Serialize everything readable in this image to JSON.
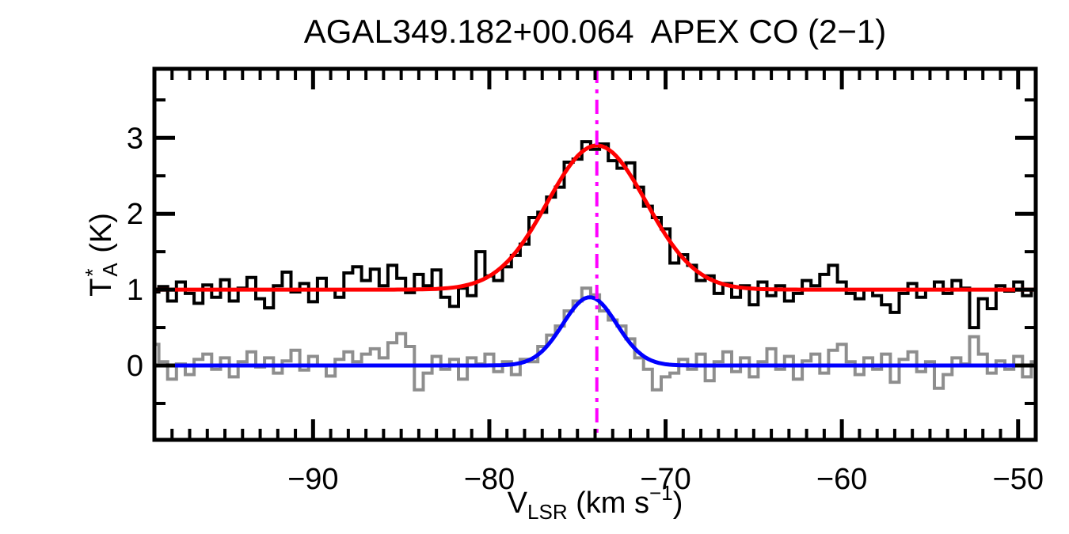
{
  "page": {
    "background": "#FFFFFF"
  },
  "chart_data": {
    "type": "line",
    "subtype": "spectral-histogram-with-gaussian-fits",
    "title": "AGAL349.182+00.064  APEX CO (2−1)",
    "xlabel": {
      "main": "V",
      "sub": "LSR",
      "mid": " (km s",
      "sup": "−1",
      "end": ")"
    },
    "xlabel_plain": "V_LSR (km s^-1)",
    "ylabel": {
      "main": "T",
      "sup": "*",
      "sub": "A",
      "end": " (K)"
    },
    "ylabel_plain": "T_A^* (K)",
    "xlim": [
      -99,
      -49
    ],
    "ylim": [
      -0.98,
      3.91
    ],
    "xticks": [
      -90,
      -80,
      -70,
      -60,
      -50
    ],
    "xtick_labels": [
      "−90",
      "−80",
      "−70",
      "−60",
      "−50"
    ],
    "xminor_step": 1,
    "yticks": [
      0,
      1,
      2,
      3
    ],
    "ytick_labels": [
      "0",
      "1",
      "2",
      "3"
    ],
    "yminor_step": 0.5,
    "grid": false,
    "legend": null,
    "channel_width": 0.5,
    "colors": {
      "spectrum_black": "#000000",
      "spectrum_gray": "#8E8E8E",
      "fit_red": "#FF0000",
      "fit_blue": "#0000FF",
      "marker_magenta": "#FF00FF",
      "axis": "#000000"
    },
    "series": [
      {
        "name": "spectrum-gray",
        "style": "histogram",
        "color_key": "spectrum_gray",
        "baseline": 0.0,
        "x_start": -99.0,
        "dx": 0.5,
        "values": [
          0.28,
          0.05,
          -0.18,
          0.02,
          -0.12,
          0.08,
          0.15,
          -0.05,
          0.1,
          -0.15,
          0.05,
          0.18,
          -0.02,
          0.1,
          -0.1,
          0.06,
          0.2,
          -0.06,
          0.12,
          0.0,
          -0.14,
          0.08,
          0.18,
          0.05,
          0.15,
          0.22,
          0.1,
          0.3,
          0.42,
          0.25,
          -0.32,
          -0.1,
          0.12,
          -0.05,
          0.08,
          -0.18,
          0.1,
          0.02,
          0.15,
          -0.08,
          0.05,
          -0.12,
          0.08,
          0.05,
          0.25,
          0.4,
          0.52,
          0.72,
          0.85,
          1.02,
          0.93,
          0.72,
          0.6,
          0.52,
          0.35,
          0.1,
          -0.05,
          -0.32,
          -0.15,
          -0.1,
          0.08,
          -0.05,
          0.15,
          -0.2,
          0.05,
          0.18,
          -0.08,
          0.1,
          -0.15,
          0.05,
          0.22,
          -0.05,
          0.12,
          -0.18,
          0.06,
          0.15,
          -0.1,
          0.2,
          0.28,
          0.05,
          -0.12,
          0.1,
          -0.05,
          0.15,
          -0.22,
          0.08,
          0.18,
          -0.08,
          0.05,
          -0.3,
          -0.12,
          0.1,
          0.02,
          0.38,
          0.15,
          -0.1,
          0.06,
          -0.05,
          0.12,
          -0.15,
          0.05
        ]
      },
      {
        "name": "spectrum-black-offset",
        "style": "histogram",
        "color_key": "spectrum_black",
        "baseline": 1.0,
        "x_start": -99.0,
        "dx": 0.5,
        "values": [
          0.97,
          1.04,
          0.85,
          1.1,
          0.95,
          0.82,
          1.06,
          0.9,
          1.13,
          0.85,
          1.02,
          1.16,
          0.88,
          0.76,
          1.05,
          1.23,
          0.97,
          1.08,
          0.84,
          1.15,
          1.0,
          0.9,
          1.22,
          1.3,
          1.12,
          1.27,
          1.05,
          1.32,
          1.15,
          0.96,
          1.2,
          1.05,
          1.26,
          0.9,
          0.78,
          1.02,
          0.92,
          1.5,
          1.18,
          1.12,
          1.3,
          1.45,
          1.6,
          1.95,
          2.02,
          2.22,
          2.35,
          2.68,
          2.72,
          2.95,
          2.85,
          2.92,
          2.7,
          2.6,
          2.67,
          2.35,
          2.1,
          1.95,
          1.8,
          1.35,
          1.46,
          1.32,
          1.12,
          1.18,
          0.95,
          1.08,
          0.9,
          1.05,
          0.8,
          1.1,
          0.92,
          1.05,
          0.85,
          0.95,
          1.12,
          1.05,
          1.2,
          1.32,
          1.1,
          0.95,
          0.88,
          1.0,
          0.92,
          0.8,
          0.7,
          0.95,
          1.08,
          0.9,
          1.0,
          1.1,
          0.95,
          1.12,
          1.02,
          0.5,
          0.88,
          0.75,
          1.05,
          0.98,
          1.1,
          0.92,
          1.0
        ]
      }
    ],
    "fits": [
      {
        "name": "gaussian-fit-blue",
        "color_key": "fit_blue",
        "baseline": 0.0,
        "amplitude": 0.9,
        "center": -74.3,
        "fwhm": 3.6
      },
      {
        "name": "gaussian-fit-red",
        "color_key": "fit_red",
        "baseline": 1.0,
        "amplitude": 1.9,
        "center": -73.9,
        "fwhm": 6.6
      }
    ],
    "vline": {
      "name": "vlsr-marker",
      "x": -73.9,
      "color_key": "marker_magenta",
      "style": "dash-dot"
    }
  }
}
